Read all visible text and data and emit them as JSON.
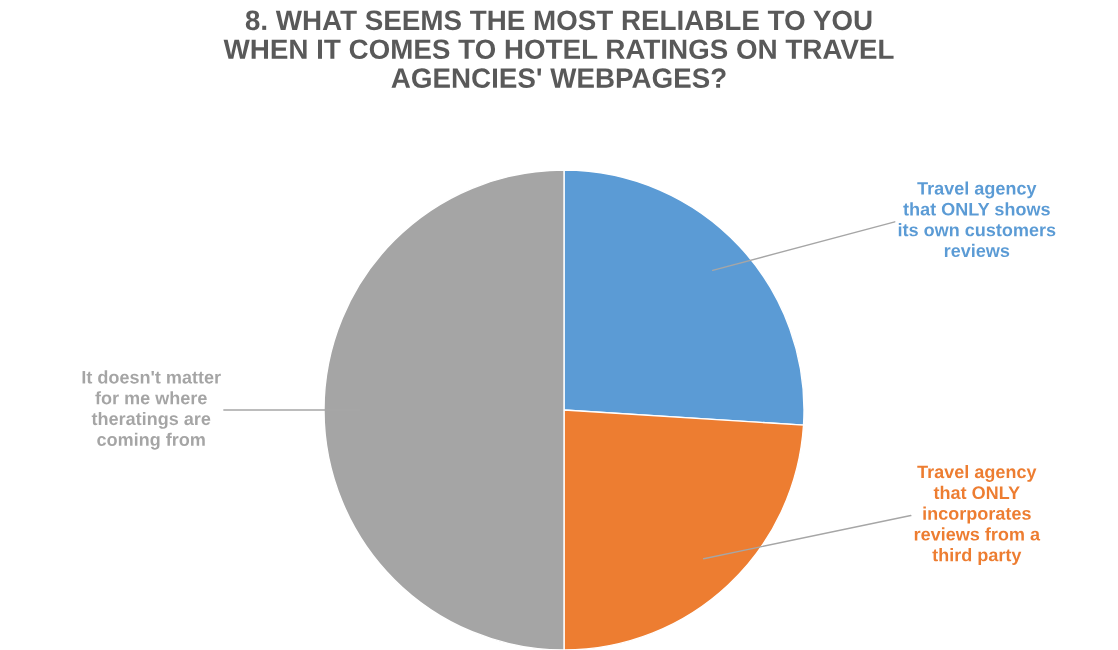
{
  "chart_data": {
    "type": "pie",
    "title": "8. WHAT SEEMS THE MOST RELIABLE TO YOU WHEN IT COMES TO HOTEL RATINGS ON TRAVEL AGENCIES' WEBPAGES?",
    "categories": [
      "Travel agency that ONLY shows its own customers reviews",
      "Travel agency that ONLY incorporates reviews from a third party",
      "It doesn't matter for me where theratings are coming from"
    ],
    "values": [
      26,
      24,
      50
    ],
    "colors": [
      "#5b9bd5",
      "#ed7d31",
      "#a5a5a5"
    ],
    "legend": false
  }
}
